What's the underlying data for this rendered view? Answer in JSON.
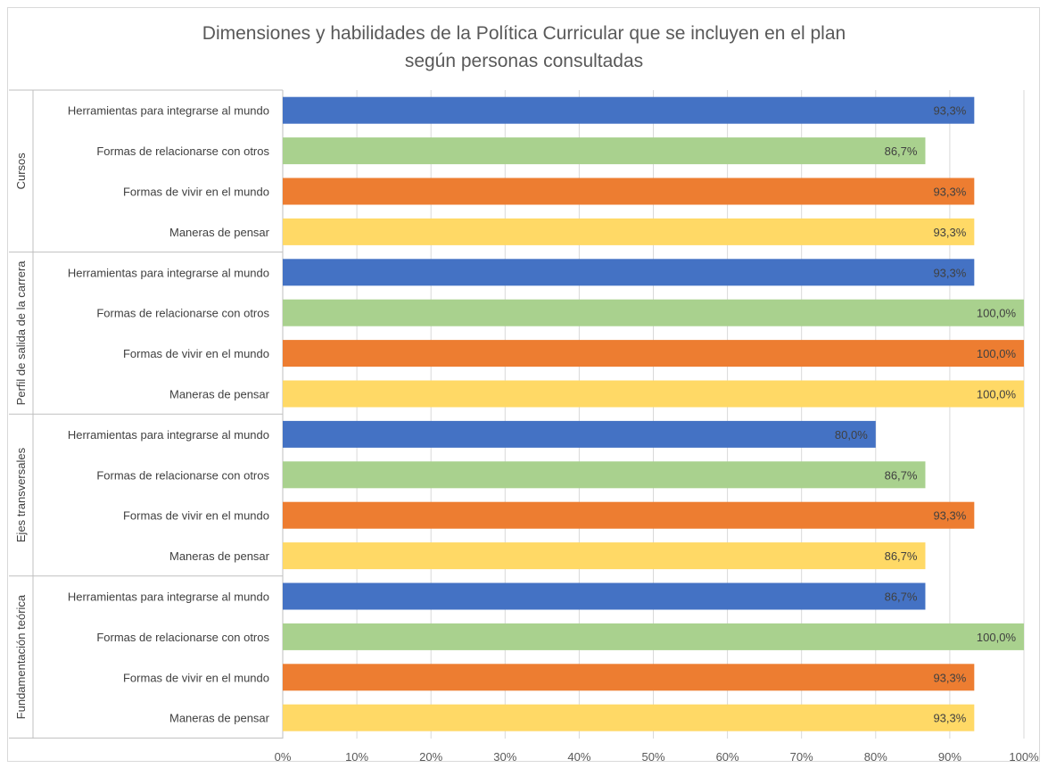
{
  "chart_data": {
    "type": "bar",
    "orientation": "horizontal",
    "title": "Dimensiones y habilidades de la Política Curricular que se incluyen en el plan según personas consultadas",
    "title_lines": [
      "Dimensiones y habilidades de la Política Curricular que se incluyen en el plan",
      "según personas consultadas"
    ],
    "xlim": [
      0,
      100
    ],
    "x_ticks": [
      "0%",
      "10%",
      "20%",
      "30%",
      "40%",
      "50%",
      "60%",
      "70%",
      "80%",
      "90%",
      "100%"
    ],
    "grid": true,
    "legend": "none",
    "colors": {
      "Herramientas para integrarse al mundo": "#4472C4",
      "Formas de relacionarse con otros": "#A9D18E",
      "Formas de vivir en el mundo": "#ED7D31",
      "Maneras de pensar": "#FFD966"
    },
    "groups": [
      {
        "name": "Cursos",
        "items": [
          {
            "label": "Herramientas para integrarse al mundo",
            "value": 93.3,
            "value_label": "93,3%"
          },
          {
            "label": "Formas de relacionarse con otros",
            "value": 86.7,
            "value_label": "86,7%"
          },
          {
            "label": "Formas de vivir en el mundo",
            "value": 93.3,
            "value_label": "93,3%"
          },
          {
            "label": "Maneras de pensar",
            "value": 93.3,
            "value_label": "93,3%"
          }
        ]
      },
      {
        "name": "Perfil de salida de la carrera",
        "items": [
          {
            "label": "Herramientas para integrarse al mundo",
            "value": 93.3,
            "value_label": "93,3%"
          },
          {
            "label": "Formas de relacionarse con otros",
            "value": 100.0,
            "value_label": "100,0%"
          },
          {
            "label": "Formas de vivir en el mundo",
            "value": 100.0,
            "value_label": "100,0%"
          },
          {
            "label": "Maneras de pensar",
            "value": 100.0,
            "value_label": "100,0%"
          }
        ]
      },
      {
        "name": "Ejes transversales",
        "items": [
          {
            "label": "Herramientas para integrarse al mundo",
            "value": 80.0,
            "value_label": "80,0%"
          },
          {
            "label": "Formas de relacionarse con otros",
            "value": 86.7,
            "value_label": "86,7%"
          },
          {
            "label": "Formas de vivir en el mundo",
            "value": 93.3,
            "value_label": "93,3%"
          },
          {
            "label": "Maneras de pensar",
            "value": 86.7,
            "value_label": "86,7%"
          }
        ]
      },
      {
        "name": "Fundamentación teórica",
        "items": [
          {
            "label": "Herramientas para integrarse al mundo",
            "value": 86.7,
            "value_label": "86,7%"
          },
          {
            "label": "Formas de relacionarse con otros",
            "value": 100.0,
            "value_label": "100,0%"
          },
          {
            "label": "Formas de vivir en el mundo",
            "value": 93.3,
            "value_label": "93,3%"
          },
          {
            "label": "Maneras de pensar",
            "value": 93.3,
            "value_label": "93,3%"
          }
        ]
      }
    ]
  }
}
